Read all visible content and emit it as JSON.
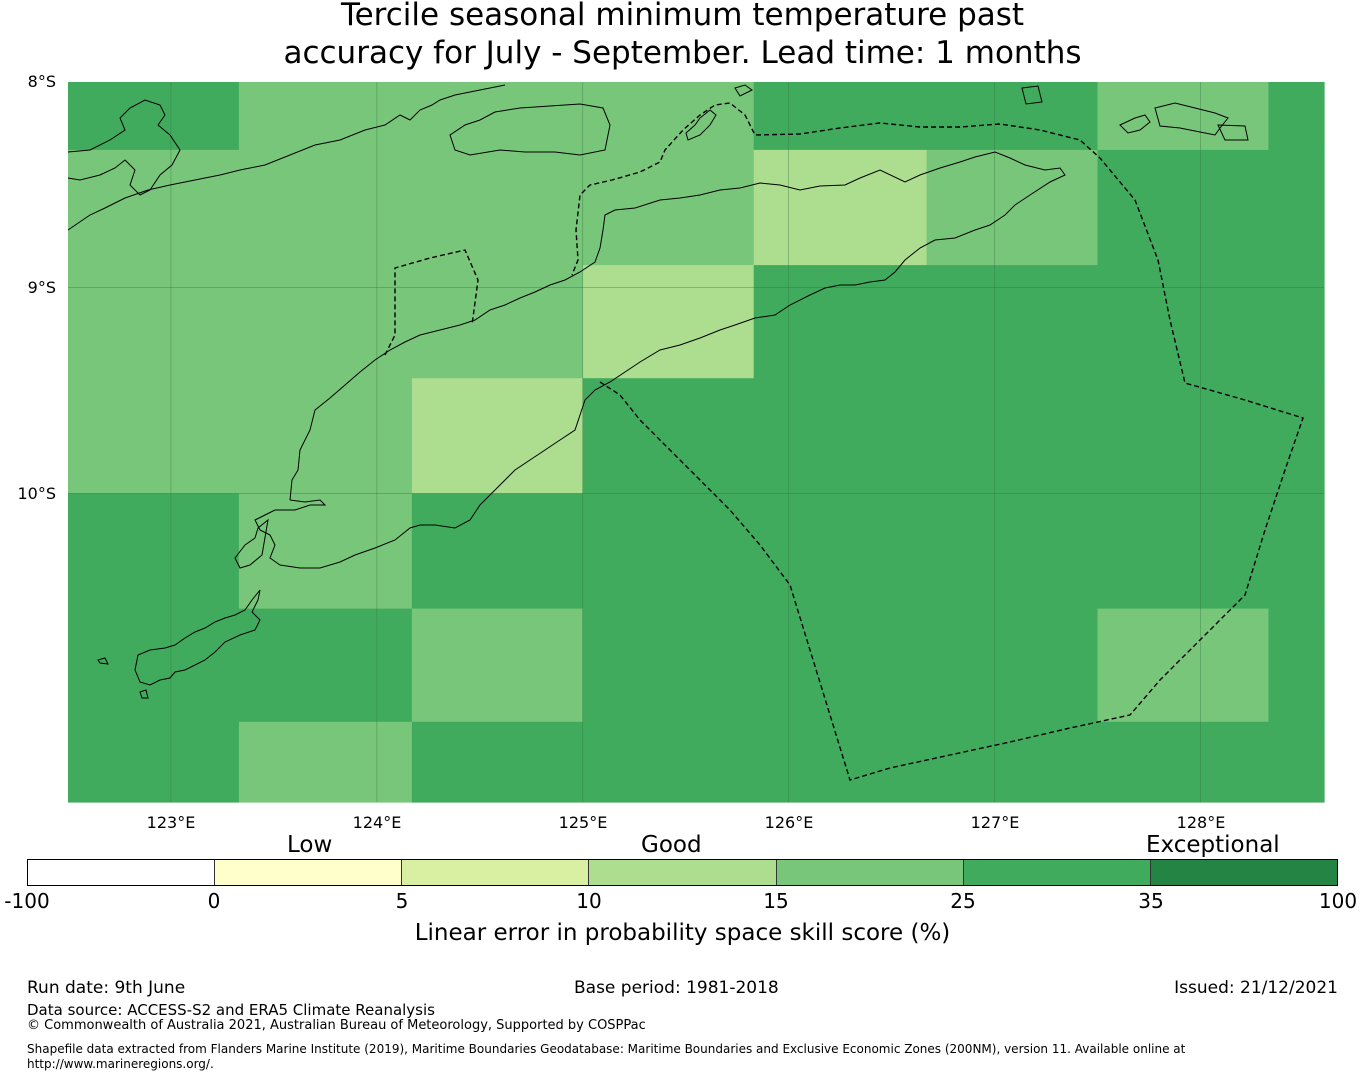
{
  "title": {
    "line1": "Tercile seasonal minimum temperature past",
    "line2": "accuracy for July - September. Lead time: 1 months"
  },
  "map": {
    "lon_range": [
      122.5,
      128.6
    ],
    "lat_range": [
      -11.5,
      -8.0
    ],
    "lat_labels": [
      "8°S",
      "9°S",
      "10°S"
    ],
    "lon_labels": [
      "123°E",
      "124°E",
      "125°E",
      "126°E",
      "127°E",
      "128°E"
    ],
    "grid_lons": [
      123,
      124,
      125,
      126,
      127,
      128
    ],
    "grid_lats": [
      -9,
      -10
    ],
    "cell_lon_edges": [
      122.5,
      123.33,
      124.17,
      125.0,
      125.83,
      126.67,
      127.5,
      128.33,
      128.6
    ],
    "cell_lat_edges": [
      -8.0,
      -8.33,
      -8.89,
      -9.44,
      -10.0,
      -10.56,
      -11.11,
      -11.5
    ],
    "cell_skill_category": [
      [
        5,
        4,
        4,
        4,
        5,
        5,
        4,
        5
      ],
      [
        4,
        4,
        4,
        4,
        3,
        4,
        5,
        5
      ],
      [
        4,
        4,
        4,
        3,
        5,
        5,
        5,
        5
      ],
      [
        4,
        4,
        3,
        5,
        5,
        5,
        5,
        5
      ],
      [
        5,
        4,
        5,
        5,
        5,
        5,
        5,
        5
      ],
      [
        5,
        5,
        4,
        5,
        5,
        5,
        4,
        5
      ],
      [
        5,
        4,
        5,
        5,
        5,
        5,
        5,
        5
      ]
    ]
  },
  "colorbar": {
    "categories": [
      "Low",
      "Good",
      "Exceptional"
    ],
    "ticks": [
      "-100",
      "0",
      "5",
      "10",
      "15",
      "25",
      "35",
      "100"
    ],
    "colors": [
      "#ffffff",
      "#ffffcc",
      "#d9f0a3",
      "#addd8e",
      "#78c679",
      "#41ab5d",
      "#238443"
    ],
    "label": "Linear error in probability space skill score (%)"
  },
  "footer": {
    "run_date": "Run date: 9th June",
    "base_period": "Base period: 1981-2018",
    "issued": "Issued: 21/12/2021",
    "data_source": "Data source: ACCESS-S2 and ERA5 Climate Reanalysis",
    "copyright": "© Commonwealth of Australia 2021, Australian Bureau of Meteorology, Supported by COSPPac",
    "shapefile_1": "Shapefile data extracted from Flanders Marine Institute (2019), Maritime Boundaries Geodatabase: Maritime Boundaries and Exclusive Economic Zones (200NM), version 11. Available online at",
    "shapefile_2": "http://www.marineregions.org/."
  }
}
